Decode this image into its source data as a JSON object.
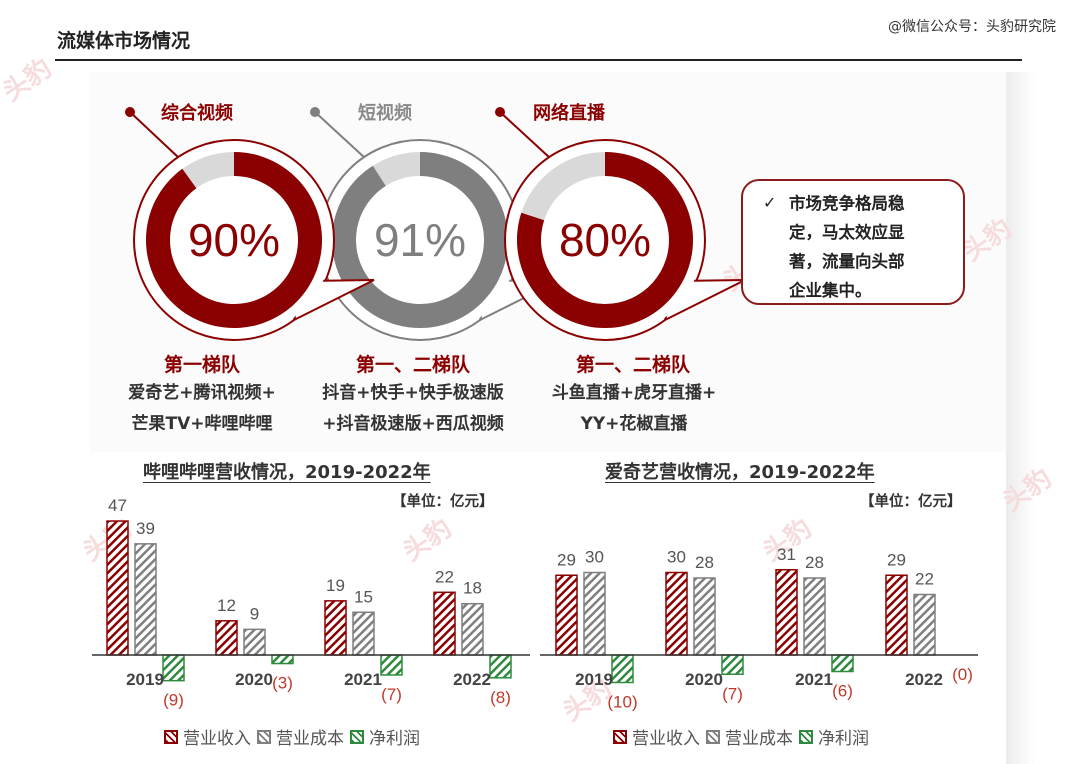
{
  "header": {
    "title": "流媒体市场情况",
    "source": "@微信公众号：头豹研究院"
  },
  "watermark": {
    "text": "头豹",
    "sub": "LeadLeo"
  },
  "colors": {
    "red": "#8b0000",
    "gray": "#7f7f7f",
    "green": "#2e8b3e",
    "light_red": "#d9d9d9"
  },
  "segments": [
    {
      "name": "综合视频",
      "share_label": "90%",
      "share": 90,
      "tier": "第一梯队",
      "players": [
        "爱奇艺+腾讯视频+",
        "芒果TV+哔哩哔哩"
      ],
      "color": "#8b0000"
    },
    {
      "name": "短视频",
      "share_label": "91%",
      "share": 91,
      "tier": "第一、二梯队",
      "players": [
        "抖音+快手+快手极速版",
        "+抖音极速版+西瓜视频"
      ],
      "color": "#7f7f7f"
    },
    {
      "name": "网络直播",
      "share_label": "80%",
      "share": 80,
      "tier": "第一、二梯队",
      "players": [
        "斗鱼直播+虎牙直播+",
        "YY+花椒直播"
      ],
      "color": "#8b0000"
    }
  ],
  "callout": {
    "check": "✓",
    "lines": [
      "市场竞争格局稳",
      "定，马太效应显",
      "著，流量向头部",
      "企业集中。"
    ]
  },
  "legend": {
    "revenue": "营业收入",
    "cost": "营业成本",
    "net": "净利润"
  },
  "chart_data": [
    {
      "type": "bar",
      "title": "哔哩哔哩营收情况，2019-2022年",
      "unit": "【单位：亿元】",
      "categories": [
        "2019",
        "2020",
        "2021",
        "2022"
      ],
      "series": [
        {
          "name": "营业收入",
          "values": [
            47,
            12,
            19,
            22
          ],
          "labels": [
            "47",
            "12",
            "19",
            "22"
          ]
        },
        {
          "name": "营业成本",
          "values": [
            39,
            9,
            15,
            18
          ],
          "labels": [
            "39",
            "9",
            "15",
            "18"
          ]
        },
        {
          "name": "净利润",
          "values": [
            -9,
            -3,
            -7,
            -8
          ],
          "labels": [
            "(9)",
            "(3)",
            "(7)",
            "(8)"
          ]
        }
      ]
    },
    {
      "type": "bar",
      "title": "爱奇艺营收情况，2019-2022年",
      "unit": "【单位：亿元】",
      "categories": [
        "2019",
        "2020",
        "2021",
        "2022"
      ],
      "series": [
        {
          "name": "营业收入",
          "values": [
            29,
            30,
            31,
            29
          ],
          "labels": [
            "29",
            "30",
            "31",
            "29"
          ]
        },
        {
          "name": "营业成本",
          "values": [
            30,
            28,
            28,
            22
          ],
          "labels": [
            "30",
            "28",
            "28",
            "22"
          ]
        },
        {
          "name": "净利润",
          "values": [
            -10,
            -7,
            -6,
            0
          ],
          "labels": [
            "(10)",
            "(7)",
            "(6)",
            "(0)"
          ]
        }
      ]
    }
  ]
}
